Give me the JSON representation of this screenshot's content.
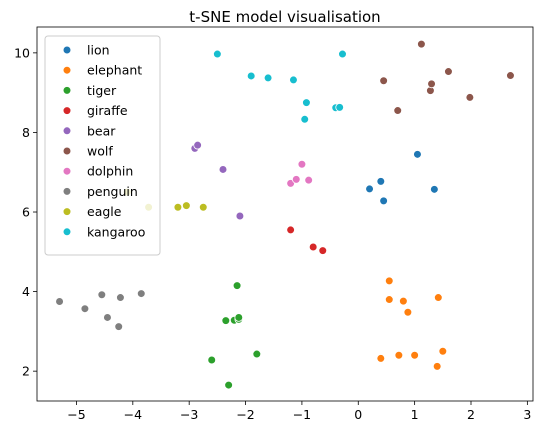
{
  "chart_data": {
    "type": "scatter",
    "title": "t-SNE model visualisation",
    "xlabel": "",
    "ylabel": "",
    "xlim": [
      -5.7,
      3.1
    ],
    "ylim": [
      1.25,
      10.65
    ],
    "xticks": [
      -5,
      -4,
      -3,
      -2,
      -1,
      0,
      1,
      2,
      3
    ],
    "yticks": [
      2,
      4,
      6,
      8,
      10
    ],
    "grid": false,
    "legend_position": "top-left",
    "series": [
      {
        "name": "lion",
        "color": "#1f77b4",
        "points": [
          [
            0.2,
            6.58
          ],
          [
            0.4,
            6.77
          ],
          [
            0.45,
            6.28
          ],
          [
            1.05,
            7.45
          ],
          [
            1.35,
            6.57
          ]
        ]
      },
      {
        "name": "elephant",
        "color": "#ff7f0e",
        "points": [
          [
            0.4,
            2.32
          ],
          [
            0.55,
            4.27
          ],
          [
            0.55,
            3.8
          ],
          [
            0.72,
            2.4
          ],
          [
            0.8,
            3.76
          ],
          [
            0.88,
            3.48
          ],
          [
            1.0,
            2.4
          ],
          [
            1.4,
            2.12
          ],
          [
            1.42,
            3.85
          ],
          [
            1.5,
            2.5
          ]
        ]
      },
      {
        "name": "tiger",
        "color": "#2ca02c",
        "points": [
          [
            -2.6,
            2.28
          ],
          [
            -2.35,
            3.27
          ],
          [
            -2.3,
            1.65
          ],
          [
            -2.2,
            3.28
          ],
          [
            -2.15,
            4.15
          ],
          [
            -2.12,
            3.3
          ],
          [
            -2.12,
            3.35
          ],
          [
            -1.8,
            2.43
          ]
        ]
      },
      {
        "name": "giraffe",
        "color": "#d62728",
        "points": [
          [
            -1.2,
            5.55
          ],
          [
            -0.8,
            5.12
          ],
          [
            -0.63,
            5.03
          ]
        ]
      },
      {
        "name": "bear",
        "color": "#9467bd",
        "points": [
          [
            -2.9,
            7.6
          ],
          [
            -2.85,
            7.68
          ],
          [
            -2.4,
            7.07
          ],
          [
            -2.1,
            5.9
          ]
        ]
      },
      {
        "name": "wolf",
        "color": "#8c564b",
        "points": [
          [
            0.45,
            9.3
          ],
          [
            0.7,
            8.55
          ],
          [
            1.12,
            10.22
          ],
          [
            1.28,
            9.05
          ],
          [
            1.3,
            9.22
          ],
          [
            1.6,
            9.53
          ],
          [
            1.98,
            8.88
          ],
          [
            2.7,
            9.43
          ]
        ]
      },
      {
        "name": "dolphin",
        "color": "#e377c2",
        "points": [
          [
            -1.2,
            6.72
          ],
          [
            -1.1,
            6.82
          ],
          [
            -1.0,
            7.2
          ],
          [
            -0.88,
            6.8
          ]
        ]
      },
      {
        "name": "penguin",
        "color": "#7f7f7f",
        "points": [
          [
            -5.3,
            3.75
          ],
          [
            -4.85,
            3.57
          ],
          [
            -4.55,
            3.92
          ],
          [
            -4.45,
            3.35
          ],
          [
            -4.25,
            3.12
          ],
          [
            -4.22,
            3.85
          ],
          [
            -3.85,
            3.95
          ]
        ]
      },
      {
        "name": "eagle",
        "color": "#bcbd22",
        "points": [
          [
            -4.1,
            6.5
          ],
          [
            -3.72,
            6.12
          ],
          [
            -3.2,
            6.12
          ],
          [
            -3.05,
            6.16
          ],
          [
            -2.75,
            6.12
          ]
        ]
      },
      {
        "name": "kangaroo",
        "color": "#17becf",
        "points": [
          [
            -2.5,
            9.97
          ],
          [
            -1.9,
            9.42
          ],
          [
            -1.6,
            9.37
          ],
          [
            -1.15,
            9.32
          ],
          [
            -0.95,
            8.33
          ],
          [
            -0.92,
            8.75
          ],
          [
            -0.4,
            8.62
          ],
          [
            -0.33,
            8.63
          ],
          [
            -0.28,
            9.97
          ]
        ]
      }
    ]
  }
}
